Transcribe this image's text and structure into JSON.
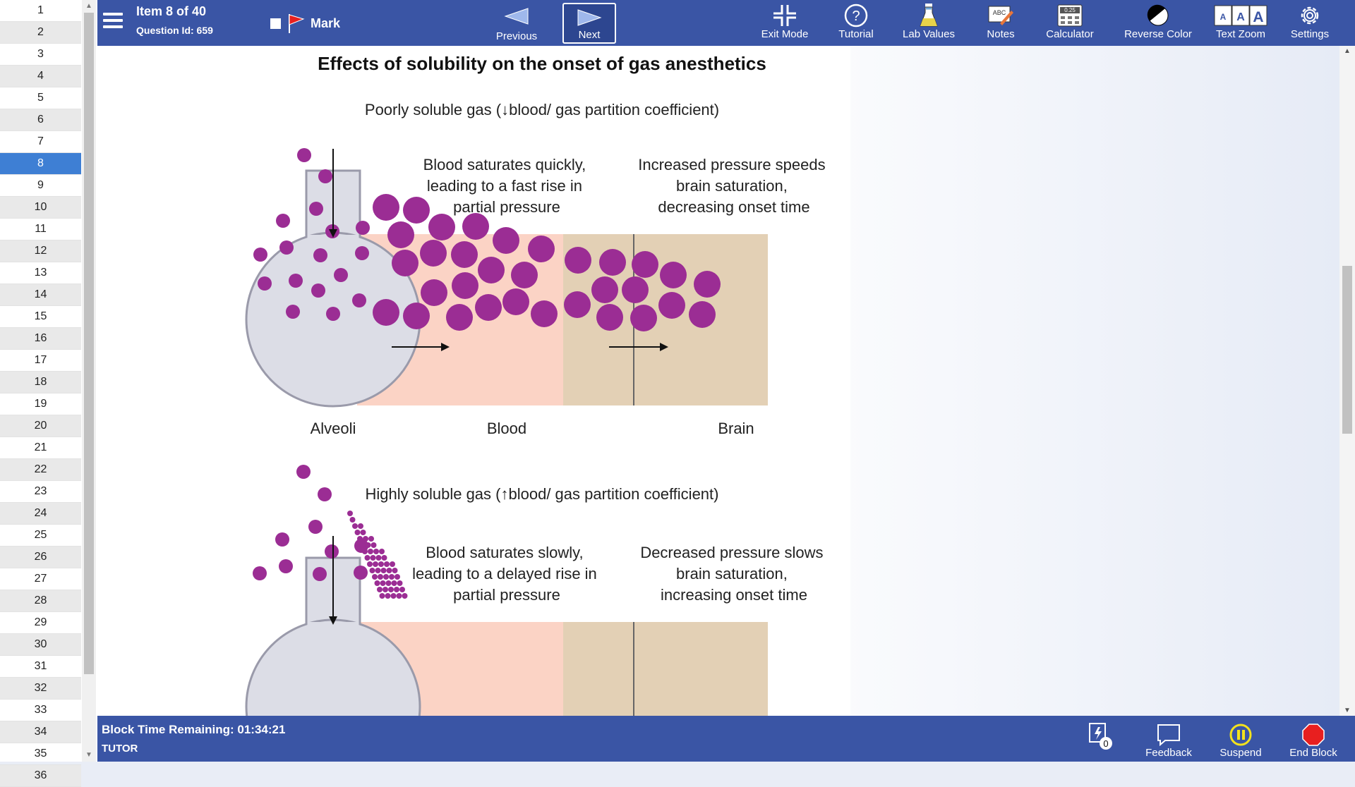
{
  "sidebar": {
    "items": [
      "1",
      "2",
      "3",
      "4",
      "5",
      "6",
      "7",
      "8",
      "9",
      "10",
      "11",
      "12",
      "13",
      "14",
      "15",
      "16",
      "17",
      "18",
      "19",
      "20",
      "21",
      "22",
      "23",
      "24",
      "25",
      "26",
      "27",
      "28",
      "29",
      "30",
      "31",
      "32",
      "33",
      "34",
      "35",
      "36"
    ],
    "current_index": 7
  },
  "header": {
    "item_title": "Item 8 of 40",
    "question_id": "Question Id: 659",
    "mark_label": "Mark",
    "previous_label": "Previous",
    "next_label": "Next",
    "tools": {
      "exit_mode": "Exit Mode",
      "tutorial": "Tutorial",
      "lab_values": "Lab Values",
      "notes": "Notes",
      "calculator": "Calculator",
      "reverse_color": "Reverse Color",
      "text_zoom": "Text Zoom",
      "settings": "Settings"
    },
    "calculator_display": "0.25",
    "notes_icon_text": "ABC",
    "text_zoom_letters": [
      "A",
      "A",
      "A"
    ]
  },
  "figure": {
    "title": "Effects of solubility on the onset of gas anesthetics",
    "top_section": {
      "heading": "Poorly soluble gas (↓blood/ gas partition coefficient)",
      "blood_note": [
        "Blood saturates quickly,",
        "leading to a fast rise in",
        "partial pressure"
      ],
      "brain_note": [
        "Increased pressure speeds",
        "brain saturation,",
        "decreasing onset time"
      ],
      "labels": {
        "alveoli": "Alveoli",
        "blood": "Blood",
        "brain": "Brain"
      }
    },
    "bottom_section": {
      "heading": "Highly soluble gas (↑blood/ gas partition coefficient)",
      "blood_note": [
        "Blood saturates slowly,",
        "leading to a delayed rise in",
        "partial pressure"
      ],
      "brain_note": [
        "Decreased pressure slows",
        "brain saturation,",
        "increasing onset time"
      ]
    },
    "colors": {
      "particle": "#9b2d94",
      "blood": "#fbd3c5",
      "brain": "#e3d0b5",
      "alveoli": "#dcdde6"
    }
  },
  "footer": {
    "timer": "Block Time Remaining: 01:34:21",
    "mode": "TUTOR",
    "flash_count": "0",
    "feedback_label": "Feedback",
    "suspend_label": "Suspend",
    "end_block_label": "End Block"
  }
}
